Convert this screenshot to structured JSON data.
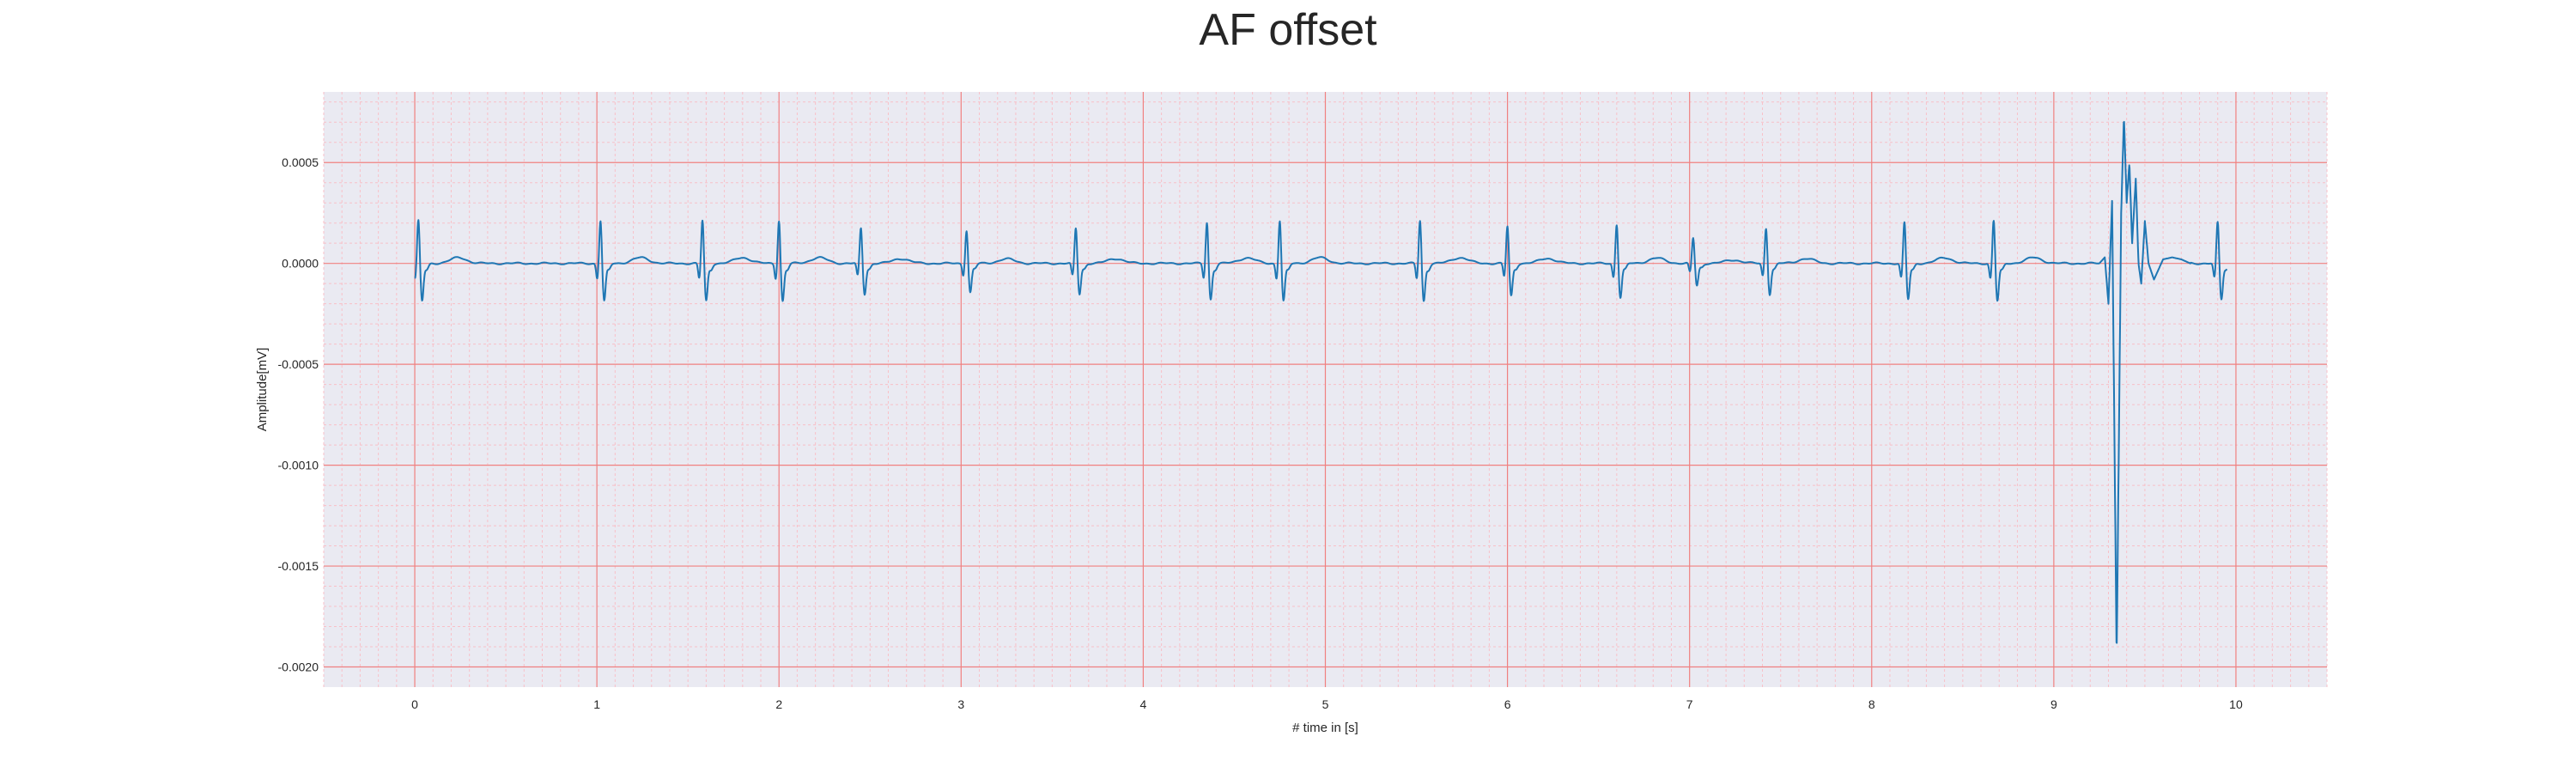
{
  "chart_data": {
    "type": "line",
    "title": "AF offset",
    "xlabel": "# time in [s]",
    "ylabel": "Amplitude[mV]",
    "xlim": [
      -0.5,
      10.5
    ],
    "ylim": [
      -0.0021,
      0.00085
    ],
    "x_ticks": [
      0,
      1,
      2,
      3,
      4,
      5,
      6,
      7,
      8,
      9,
      10
    ],
    "x_tick_labels": [
      "0",
      "1",
      "2",
      "3",
      "4",
      "5",
      "6",
      "7",
      "8",
      "9",
      "10"
    ],
    "y_ticks": [
      0.0005,
      0.0,
      -0.0005,
      -0.001,
      -0.0015,
      -0.002
    ],
    "y_tick_labels": [
      "0.0005",
      "0.0000",
      "-0.0005",
      "-0.0010",
      "-0.0015",
      "-0.0020"
    ],
    "grid": true,
    "minor_grid": true,
    "background_color": "#eaeaf2",
    "major_grid_color": "#f08080",
    "minor_grid_color": "#f8c0c8",
    "line_color": "#1f77b4",
    "series": [
      {
        "name": "",
        "beats": [
          {
            "t": 0.02,
            "amp": 0.00022
          },
          {
            "t": 1.02,
            "amp": 0.00022
          },
          {
            "t": 1.58,
            "amp": 0.00022
          },
          {
            "t": 2.0,
            "amp": 0.00022
          },
          {
            "t": 2.45,
            "amp": 0.00018
          },
          {
            "t": 3.03,
            "amp": 0.00017
          },
          {
            "t": 3.63,
            "amp": 0.00018
          },
          {
            "t": 4.35,
            "amp": 0.00021
          },
          {
            "t": 4.75,
            "amp": 0.00022
          },
          {
            "t": 5.52,
            "amp": 0.00022
          },
          {
            "t": 6.0,
            "amp": 0.00019
          },
          {
            "t": 6.6,
            "amp": 0.0002
          },
          {
            "t": 7.02,
            "amp": 0.00013
          },
          {
            "t": 7.42,
            "amp": 0.00018
          },
          {
            "t": 8.18,
            "amp": 0.00021
          },
          {
            "t": 8.67,
            "amp": 0.00022
          },
          {
            "t": 9.9,
            "amp": 0.00021
          }
        ],
        "artifact_points": [
          [
            9.25,
            0.0
          ],
          [
            9.28,
            3e-05
          ],
          [
            9.3,
            -0.0002
          ],
          [
            9.32,
            0.00031
          ],
          [
            9.345,
            -0.00197
          ],
          [
            9.37,
            0.00025
          ],
          [
            9.385,
            0.00073
          ],
          [
            9.4,
            0.0003
          ],
          [
            9.415,
            0.0005
          ],
          [
            9.43,
            0.0001
          ],
          [
            9.45,
            0.00042
          ],
          [
            9.465,
            0.0
          ],
          [
            9.48,
            -0.0001
          ],
          [
            9.5,
            0.00021
          ],
          [
            9.52,
            0.0
          ],
          [
            9.55,
            -8e-05
          ],
          [
            9.6,
            2e-05
          ],
          [
            9.65,
            3e-05
          ],
          [
            9.7,
            2e-05
          ],
          [
            9.75,
            0.0
          ]
        ]
      }
    ]
  }
}
